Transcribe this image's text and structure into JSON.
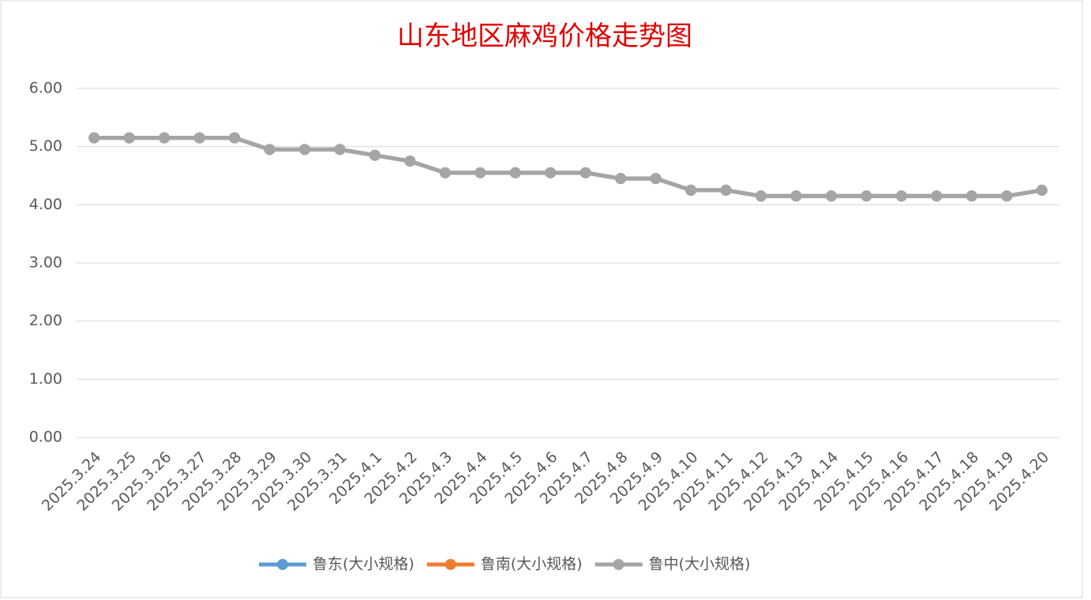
{
  "chart_data": {
    "type": "line",
    "title": "山东地区麻鸡价格走势图",
    "categories": [
      "2025.3.24",
      "2025.3.25",
      "2025.3.26",
      "2025.3.27",
      "2025.3.28",
      "2025.3.29",
      "2025.3.30",
      "2025.3.31",
      "2025.4.1",
      "2025.4.2",
      "2025.4.3",
      "2025.4.4",
      "2025.4.5",
      "2025.4.6",
      "2025.4.7",
      "2025.4.8",
      "2025.4.9",
      "2025.4.10",
      "2025.4.11",
      "2025.4.12",
      "2025.4.13",
      "2025.4.14",
      "2025.4.15",
      "2025.4.16",
      "2025.4.17",
      "2025.4.18",
      "2025.4.19",
      "2025.4.20"
    ],
    "series": [
      {
        "name": "鲁东(大小规格)",
        "color": "#5b9bd5",
        "values": [
          5.15,
          5.15,
          5.15,
          5.15,
          5.15,
          4.95,
          4.95,
          4.95,
          4.85,
          4.75,
          4.55,
          4.55,
          4.55,
          4.55,
          4.55,
          4.45,
          4.45,
          4.25,
          4.25,
          4.15,
          4.15,
          4.15,
          4.15,
          4.15,
          4.15,
          4.15,
          4.15,
          4.25
        ]
      },
      {
        "name": "鲁南(大小规格)",
        "color": "#ed7d31",
        "values": [
          5.15,
          5.15,
          5.15,
          5.15,
          5.15,
          4.95,
          4.95,
          4.95,
          4.85,
          4.75,
          4.55,
          4.55,
          4.55,
          4.55,
          4.55,
          4.45,
          4.45,
          4.25,
          4.25,
          4.15,
          4.15,
          4.15,
          4.15,
          4.15,
          4.15,
          4.15,
          4.15,
          4.25
        ]
      },
      {
        "name": "鲁中(大小规格)",
        "color": "#a5a5a5",
        "values": [
          5.15,
          5.15,
          5.15,
          5.15,
          5.15,
          4.95,
          4.95,
          4.95,
          4.85,
          4.75,
          4.55,
          4.55,
          4.55,
          4.55,
          4.55,
          4.45,
          4.45,
          4.25,
          4.25,
          4.15,
          4.15,
          4.15,
          4.15,
          4.15,
          4.15,
          4.15,
          4.15,
          4.25
        ]
      }
    ],
    "ylim": [
      0,
      6
    ],
    "yticks": [
      {
        "value": 0,
        "label": "0.00"
      },
      {
        "value": 1,
        "label": "1.00"
      },
      {
        "value": 2,
        "label": "2.00"
      },
      {
        "value": 3,
        "label": "3.00"
      },
      {
        "value": 4,
        "label": "4.00"
      },
      {
        "value": 5,
        "label": "5.00"
      },
      {
        "value": 6,
        "label": "6.00"
      }
    ],
    "grid": true,
    "legend": "bottom"
  }
}
